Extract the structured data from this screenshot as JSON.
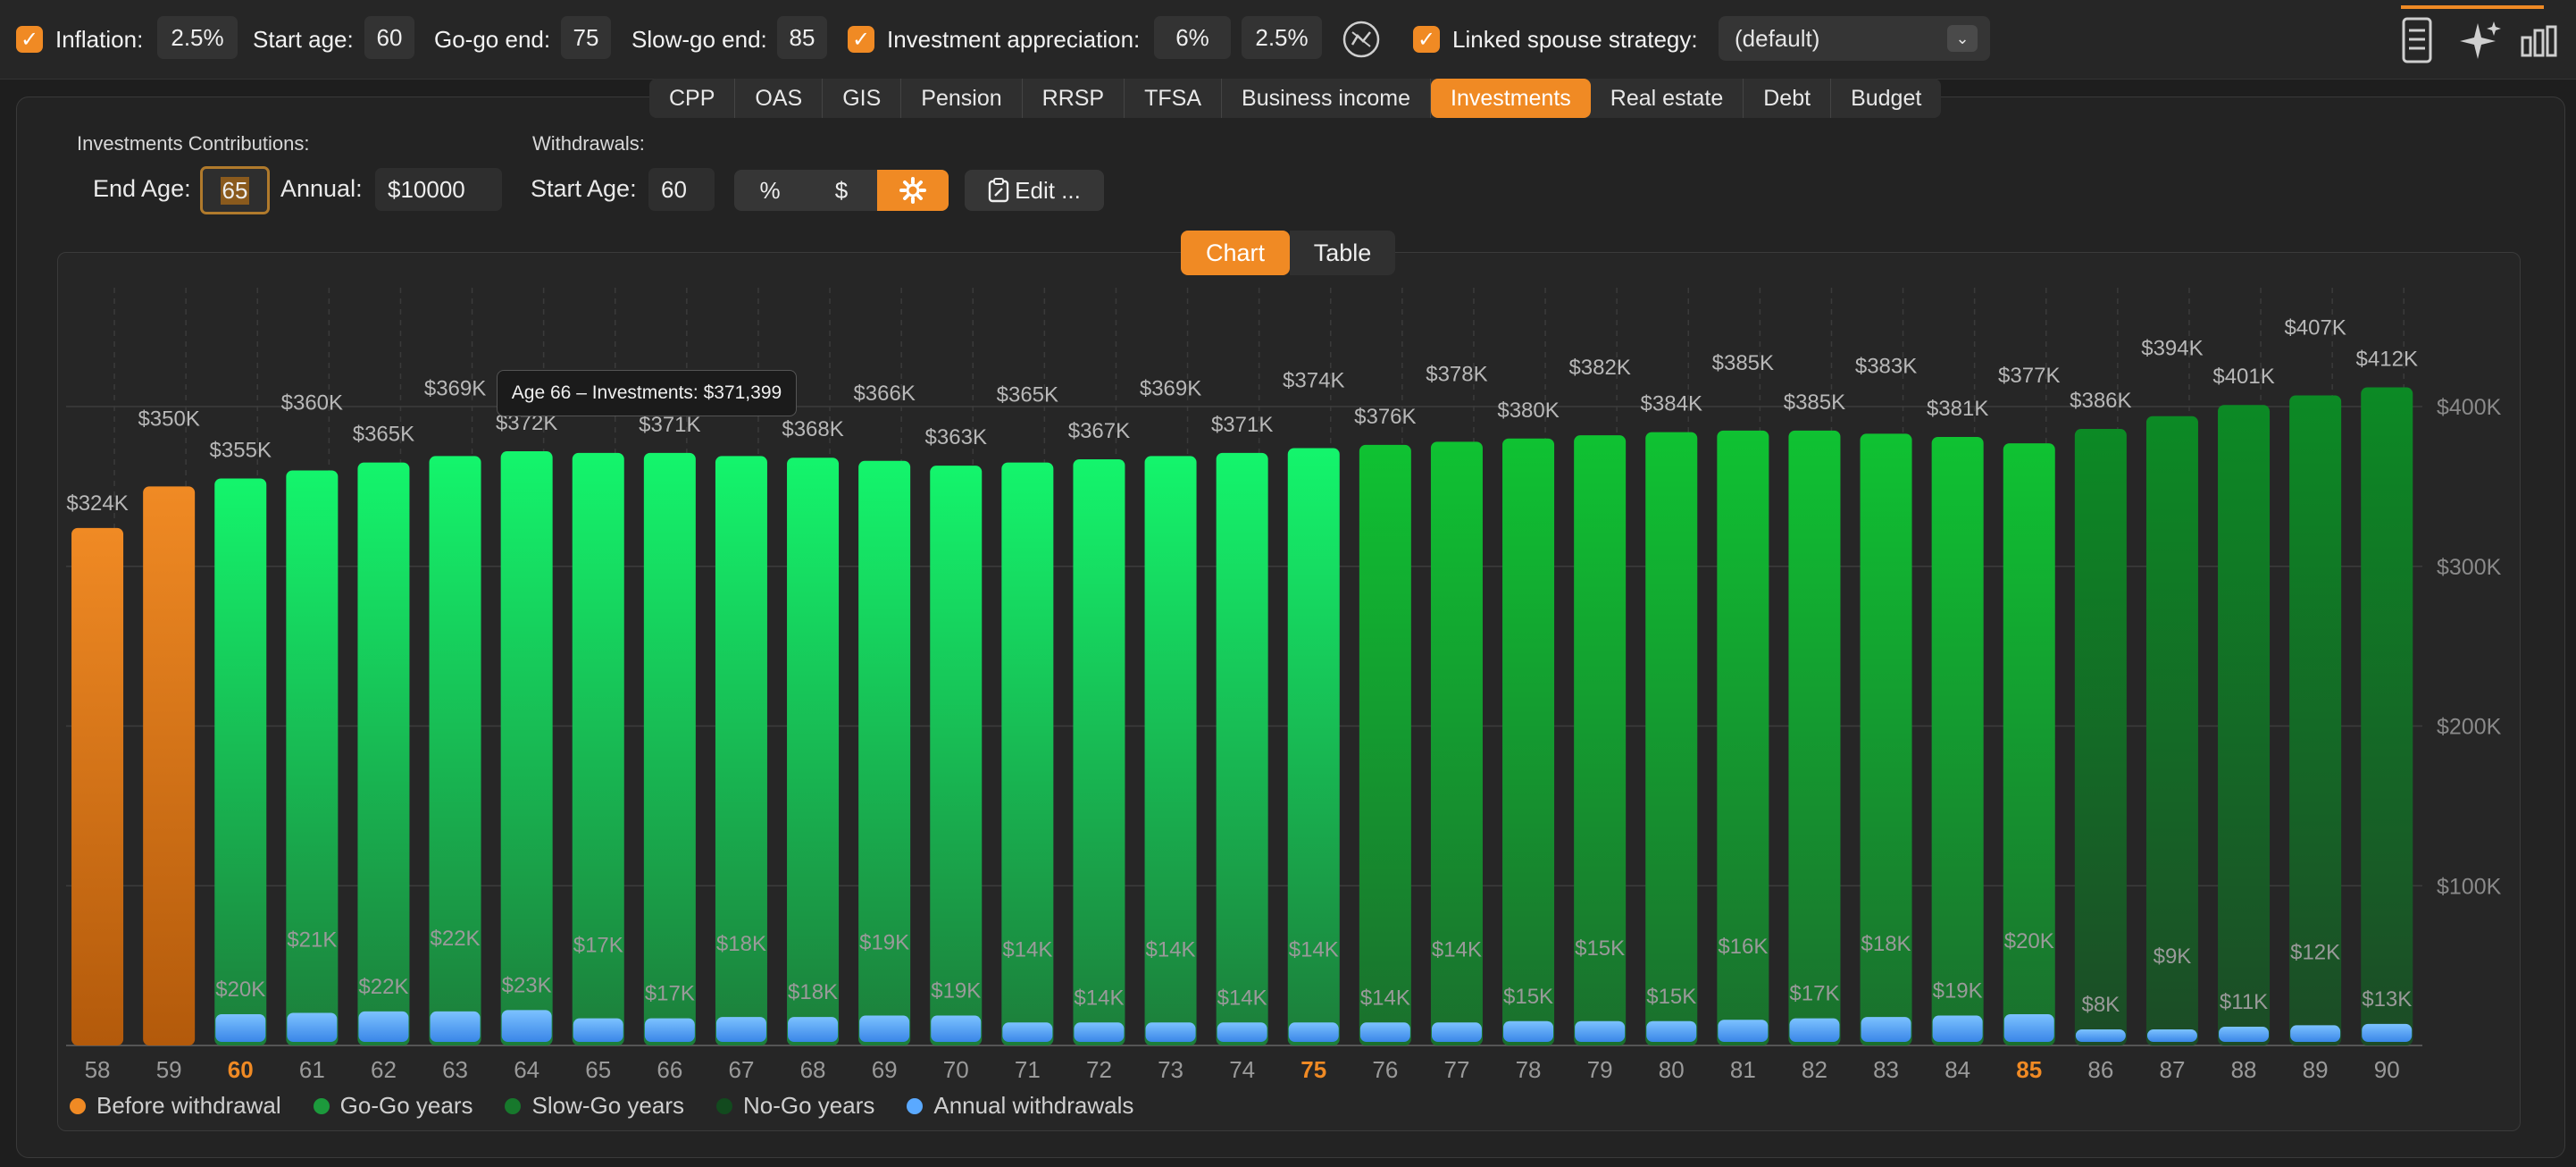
{
  "topbar": {
    "inflation_label": "Inflation:",
    "inflation_value": "2.5%",
    "start_age_label": "Start age:",
    "start_age_value": "60",
    "gogo_end_label": "Go-go end:",
    "gogo_end_value": "75",
    "slowgo_end_label": "Slow-go end:",
    "slowgo_end_value": "85",
    "appreciation_label": "Investment appreciation:",
    "appreciation_value": "6%",
    "appreciation_value2": "2.5%",
    "spouse_label": "Linked spouse strategy:",
    "spouse_value": "(default)"
  },
  "tabs": [
    {
      "label": "CPP"
    },
    {
      "label": "OAS"
    },
    {
      "label": "GIS"
    },
    {
      "label": "Pension"
    },
    {
      "label": "RRSP"
    },
    {
      "label": "TFSA"
    },
    {
      "label": "Business income"
    },
    {
      "label": "Investments"
    },
    {
      "label": "Real estate"
    },
    {
      "label": "Debt"
    },
    {
      "label": "Budget"
    }
  ],
  "active_tab": "Investments",
  "contributions": {
    "heading": "Investments Contributions:",
    "end_age_label": "End Age:",
    "end_age_value": "65",
    "annual_label": "Annual:",
    "annual_value": "$10000"
  },
  "withdrawals": {
    "heading": "Withdrawals:",
    "start_age_label": "Start Age:",
    "start_age_value": "60",
    "mode_percent": "%",
    "mode_dollar": "$",
    "edit_label": "Edit ..."
  },
  "view_toggle": {
    "chart": "Chart",
    "table": "Table",
    "active": "Chart"
  },
  "tooltip": "Age 66 – Investments: $371,399",
  "colors": {
    "accent": "#f08a24",
    "before": "#f08a24",
    "gogo": "#16f06a",
    "slowgo": "#0fb52d",
    "nogo": "#0b7f21",
    "withdrawal": "#5aa9ff"
  },
  "chart_data": {
    "type": "bar",
    "categories": [
      "58",
      "59",
      "60",
      "61",
      "62",
      "63",
      "64",
      "65",
      "66",
      "67",
      "68",
      "69",
      "70",
      "71",
      "72",
      "73",
      "74",
      "75",
      "76",
      "77",
      "78",
      "79",
      "80",
      "81",
      "82",
      "83",
      "84",
      "85",
      "86",
      "87",
      "88",
      "89",
      "90"
    ],
    "highlight_ages": [
      "60",
      "75",
      "85"
    ],
    "series": [
      {
        "name": "Investments",
        "values": [
          324,
          350,
          355,
          360,
          365,
          369,
          372,
          371,
          371,
          369,
          368,
          366,
          363,
          365,
          367,
          369,
          371,
          374,
          376,
          378,
          380,
          382,
          384,
          385,
          385,
          383,
          381,
          377,
          386,
          394,
          401,
          407,
          412
        ],
        "labels": [
          "$324K",
          "$350K",
          "$355K",
          "$360K",
          "$365K",
          "$369K",
          "$372K",
          "$371K",
          "$371K",
          "$369K",
          "$368K",
          "$366K",
          "$363K",
          "$365K",
          "$367K",
          "$369K",
          "$371K",
          "$374K",
          "$376K",
          "$378K",
          "$380K",
          "$382K",
          "$384K",
          "$385K",
          "$385K",
          "$383K",
          "$381K",
          "$377K",
          "$386K",
          "$394K",
          "$401K",
          "$407K",
          "$412K"
        ]
      },
      {
        "name": "Annual withdrawals",
        "values": [
          0,
          0,
          20,
          21,
          22,
          22,
          23,
          17,
          17,
          18,
          18,
          19,
          19,
          14,
          14,
          14,
          14,
          14,
          14,
          14,
          15,
          15,
          15,
          16,
          17,
          18,
          19,
          20,
          8,
          9,
          11,
          12,
          13
        ],
        "labels": [
          "",
          "",
          "$20K",
          "$21K",
          "$22K",
          "$22K",
          "$23K",
          "$17K",
          "$17K",
          "$18K",
          "$18K",
          "$19K",
          "$19K",
          "$14K",
          "$14K",
          "$14K",
          "$14K",
          "$14K",
          "$14K",
          "$14K",
          "$15K",
          "$15K",
          "$15K",
          "$16K",
          "$17K",
          "$18K",
          "$19K",
          "$20K",
          "$8K",
          "$9K",
          "$11K",
          "$12K",
          "$13K"
        ]
      }
    ],
    "phase": [
      "before",
      "before",
      "gogo",
      "gogo",
      "gogo",
      "gogo",
      "gogo",
      "gogo",
      "gogo",
      "gogo",
      "gogo",
      "gogo",
      "gogo",
      "gogo",
      "gogo",
      "gogo",
      "gogo",
      "gogo",
      "slowgo",
      "slowgo",
      "slowgo",
      "slowgo",
      "slowgo",
      "slowgo",
      "slowgo",
      "slowgo",
      "slowgo",
      "slowgo",
      "nogo",
      "nogo",
      "nogo",
      "nogo",
      "nogo"
    ],
    "ylim": [
      0,
      400
    ],
    "yticks": [
      {
        "value": 100,
        "label": "$100K"
      },
      {
        "value": 200,
        "label": "$200K"
      },
      {
        "value": 300,
        "label": "$300K"
      },
      {
        "value": 400,
        "label": "$400K"
      }
    ],
    "legend": [
      {
        "label": "Before withdrawal",
        "key": "before"
      },
      {
        "label": "Go-Go years",
        "key": "gogo"
      },
      {
        "label": "Slow-Go years",
        "key": "slowgo"
      },
      {
        "label": "No-Go years",
        "key": "nogo"
      },
      {
        "label": "Annual withdrawals",
        "key": "withdrawal"
      }
    ]
  }
}
